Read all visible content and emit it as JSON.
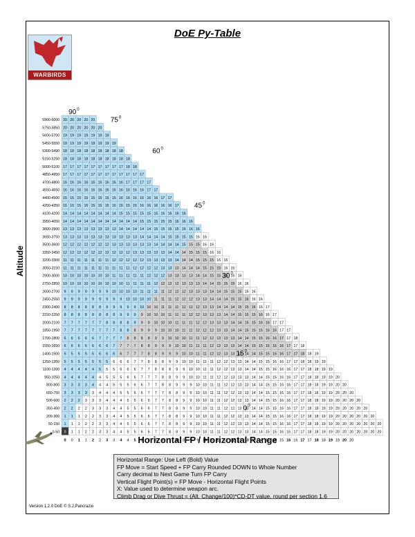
{
  "title": "DoE Py-Table",
  "logo": {
    "text": "WARBIRDS"
  },
  "ylabel": "Altitude",
  "xlabel": "Horizontal FP / Horizontal Range",
  "altitudes": [
    "5900-6000",
    "5750-5850",
    "5600-5700",
    "5450-5550",
    "5300-5490",
    "5150-5250",
    "5000-5100",
    "4850-4950",
    "4700-4800",
    "4550-4650",
    "4400-4500",
    "4250-4350",
    "4100-4200",
    "3950-4050",
    "3800-3900",
    "3650-3750",
    "3500-3600",
    "3350-3450",
    "3200-3300",
    "3050-3150",
    "2900-3000",
    "2750-2850",
    "2600-2700",
    "2450-2550",
    "2300-2400",
    "2150-2250",
    "2000-2100",
    "1850-1950",
    "1700-1800",
    "1550-1650",
    "1400-1500",
    "1250-1350",
    "1100-1200",
    "950-1050",
    "800-900",
    "650-750",
    "500-600",
    "350-450",
    "200-300",
    "50-150",
    "0-50"
  ],
  "angles": [
    {
      "label": "90",
      "row": 0,
      "col": 1
    },
    {
      "label": "75",
      "row": 1,
      "col": 7
    },
    {
      "label": "60",
      "row": 5,
      "col": 13
    },
    {
      "label": "45",
      "row": 12,
      "col": 19
    },
    {
      "label": "30",
      "row": 21,
      "col": 23
    },
    {
      "label": "15",
      "row": 31,
      "col": 25
    },
    {
      "label": "0",
      "row": 38,
      "col": 26
    }
  ],
  "angle_sup": "0",
  "notes": [
    "Horizontal Range: Use Left (Bold) Value",
    "FP Move = Start Speed + FP Carry Rounded DOWN to Whole Number",
    "Carry decimal to Next Game Turn FP Carry",
    "Vertical Flight Point(s) = FP Move - Horizontal Flight Points",
    "X: Value used to determine weapon arc.",
    "Climb Drag or Dive Thrust = (Alt. Change/100)*CD-DT value, round per section 1.6"
  ],
  "version": "Version 1.2.0 DoE © S.J.Pancrazio",
  "colors": {
    "blue": "#b7e1f5",
    "grey": "#d4d4d4",
    "white": "#ffffff",
    "black": "#3a3a3a"
  }
}
